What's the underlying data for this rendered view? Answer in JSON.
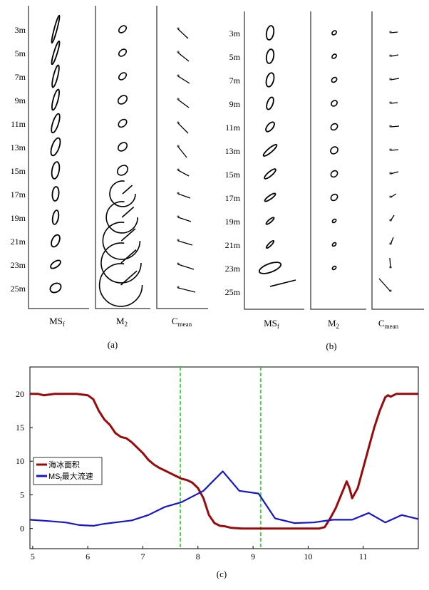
{
  "panel_a": {
    "caption": "(a)",
    "depth_labels": [
      "3m",
      "5m",
      "7m",
      "9m",
      "11m",
      "13m",
      "15m",
      "17m",
      "19m",
      "21m",
      "23m",
      "25m"
    ],
    "columns": [
      {
        "label": "MS",
        "sub": "f"
      },
      {
        "label": "M",
        "sub": "2"
      },
      {
        "label": "C",
        "sub": "mean"
      }
    ]
  },
  "panel_b": {
    "caption": "(b)",
    "depth_labels": [
      "3m",
      "5m",
      "7m",
      "9m",
      "11m",
      "13m",
      "15m",
      "17m",
      "19m",
      "21m",
      "23m",
      "25m"
    ],
    "columns": [
      {
        "label": "MS",
        "sub": "f"
      },
      {
        "label": "M",
        "sub": "2"
      },
      {
        "label": "C",
        "sub": "mean"
      }
    ]
  },
  "panel_c": {
    "caption": "(c)"
  },
  "chart_data": {
    "type": "line",
    "xlim": [
      4.95,
      12
    ],
    "ylim": [
      -3,
      24
    ],
    "xticks": [
      "5",
      "6",
      "7",
      "8",
      "9",
      "10",
      "11"
    ],
    "yticks": [
      "0",
      "5",
      "10",
      "15",
      "20"
    ],
    "vlines": [
      7.68,
      9.14
    ],
    "series": [
      {
        "name": "海冰面积",
        "name_sub": "",
        "name_suffix": "",
        "color": "#9b0a0a",
        "x": [
          4.95,
          5.1,
          5.2,
          5.4,
          5.6,
          5.8,
          6.0,
          6.1,
          6.2,
          6.3,
          6.4,
          6.5,
          6.6,
          6.7,
          6.8,
          6.9,
          7.0,
          7.1,
          7.2,
          7.3,
          7.4,
          7.5,
          7.6,
          7.7,
          7.8,
          7.9,
          8.0,
          8.1,
          8.2,
          8.3,
          8.4,
          8.5,
          8.6,
          8.8,
          9.0,
          9.2,
          9.4,
          9.6,
          9.8,
          10.0,
          10.2,
          10.3,
          10.4,
          10.5,
          10.6,
          10.7,
          10.75,
          10.8,
          10.9,
          11.0,
          11.1,
          11.2,
          11.3,
          11.4,
          11.45,
          11.5,
          11.6,
          11.8,
          12.0
        ],
        "values": [
          20,
          20,
          19.8,
          20,
          20,
          20,
          19.8,
          19.2,
          17.5,
          16.2,
          15.4,
          14.2,
          13.6,
          13.4,
          12.8,
          12.0,
          11.2,
          10.2,
          9.5,
          9.0,
          8.6,
          8.2,
          7.8,
          7.4,
          7.2,
          6.8,
          6.0,
          4.5,
          2.0,
          0.8,
          0.4,
          0.3,
          0.1,
          0,
          0,
          0,
          0,
          0,
          0,
          0,
          0,
          0.2,
          1.5,
          3.0,
          5.0,
          7.0,
          6.0,
          4.5,
          6.0,
          9.0,
          12.0,
          15.0,
          17.5,
          19.5,
          19.8,
          19.6,
          20,
          20,
          20
        ]
      },
      {
        "name": "MS",
        "name_sub": "f",
        "name_suffix": "最大流速",
        "color": "#1414d2",
        "x": [
          4.95,
          5.3,
          5.6,
          5.85,
          6.1,
          6.3,
          6.5,
          6.8,
          7.1,
          7.4,
          7.7,
          8.1,
          8.45,
          8.75,
          9.1,
          9.4,
          9.75,
          10.1,
          10.45,
          10.8,
          11.1,
          11.4,
          11.7,
          12.0
        ],
        "values": [
          1.3,
          1.1,
          0.9,
          0.5,
          0.4,
          0.7,
          0.9,
          1.2,
          2.0,
          3.2,
          3.9,
          5.6,
          8.5,
          5.6,
          5.2,
          1.5,
          0.8,
          0.9,
          1.3,
          1.3,
          2.3,
          0.9,
          2.0,
          1.4
        ]
      }
    ]
  }
}
